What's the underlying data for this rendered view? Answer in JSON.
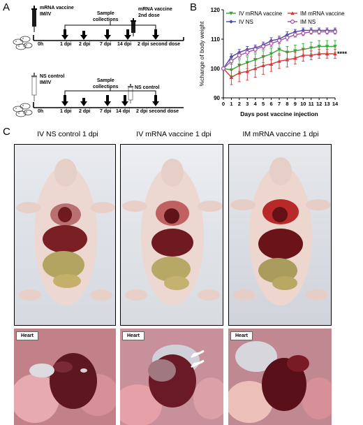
{
  "panels": {
    "a": "A",
    "b": "B",
    "c": "C"
  },
  "panelA": {
    "top": {
      "vaccine_label": [
        "mRNA vaccine",
        "IM/IV"
      ],
      "sample_label": [
        "Sample",
        "collections"
      ],
      "second_dose_label": [
        "mRNA vaccine",
        "2nd dose"
      ],
      "timepoints": [
        "0h",
        "1 dpi",
        "2 dpi",
        "7 dpi",
        "14 dpi",
        "2 dpi second dose"
      ]
    },
    "bottom": {
      "control_label": [
        "NS control",
        "IM/IV"
      ],
      "sample_label": [
        "Sample",
        "collections"
      ],
      "second_dose_label": "NS control",
      "timepoints": [
        "0h",
        "1 dpi",
        "2 dpi",
        "7 dpi",
        "14 dpi",
        "2 dpi second dose"
      ]
    }
  },
  "panelC": {
    "titles": [
      "IV  NS control  1 dpi",
      "IV mRNA vaccine  1 dpi",
      "IM mRNA vaccine  1 dpi"
    ],
    "heart_label": "Heart"
  },
  "chart_data": {
    "type": "line",
    "title": "",
    "xlabel": "Days post vaccine injection",
    "ylabel": "%change of body weight",
    "xlim": [
      0,
      14
    ],
    "ylim": [
      90,
      120
    ],
    "xticks": [
      0,
      1,
      2,
      3,
      4,
      5,
      6,
      7,
      8,
      9,
      10,
      11,
      12,
      13,
      14
    ],
    "yticks": [
      90,
      100,
      110,
      120
    ],
    "legend_position": "top",
    "annotation": "****",
    "x": [
      0,
      1,
      2,
      3,
      4,
      5,
      6,
      7,
      8,
      9,
      10,
      11,
      12,
      13,
      14
    ],
    "series": [
      {
        "name": "IV mRNA vaccine",
        "color": "#3aa63a",
        "marker": "triangle-down",
        "values": [
          100,
          99.5,
          101,
          102,
          103,
          104,
          105,
          106.5,
          105.5,
          106,
          106.5,
          107,
          107.5,
          107.5,
          107.5
        ],
        "errors": [
          0.3,
          2,
          2,
          2,
          2,
          2,
          2,
          2,
          2,
          2,
          2,
          2,
          2,
          2,
          2
        ]
      },
      {
        "name": "IM mRNA vaccine",
        "color": "#d23a3a",
        "marker": "triangle-up",
        "values": [
          100,
          97,
          98.5,
          99,
          100,
          101,
          101.5,
          102.5,
          103,
          103.5,
          104.5,
          104.5,
          105,
          105,
          105
        ],
        "errors": [
          0.3,
          2.5,
          3,
          3,
          3,
          3,
          2.5,
          2.5,
          2.5,
          2,
          2,
          1.5,
          1.5,
          1.5,
          1.5
        ]
      },
      {
        "name": "IV NS",
        "color": "#4a4ab0",
        "marker": "diamond",
        "values": [
          100,
          104,
          105.5,
          106.5,
          107,
          108,
          109.5,
          110,
          111.5,
          112.5,
          113,
          113,
          113,
          113,
          113
        ],
        "errors": [
          0.3,
          1,
          1,
          1,
          1,
          1,
          1,
          1,
          1,
          0.8,
          0.8,
          0.8,
          0.8,
          0.8,
          0.8
        ]
      },
      {
        "name": "IM NS",
        "color": "#a050a0",
        "marker": "circle",
        "values": [
          100,
          102.5,
          104.5,
          105.5,
          106.5,
          107.5,
          108.5,
          109.5,
          110.5,
          111.5,
          112,
          112.5,
          112.5,
          112.5,
          112.5
        ],
        "errors": [
          0.3,
          1,
          1,
          1,
          1,
          1,
          1,
          1,
          1,
          0.8,
          0.8,
          0.8,
          0.8,
          0.8,
          0.8
        ]
      }
    ]
  }
}
